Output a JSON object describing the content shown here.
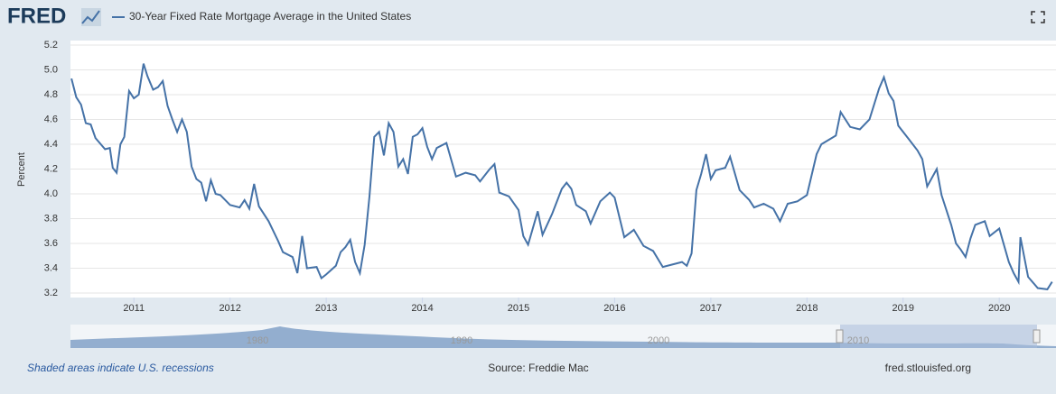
{
  "chart_data": {
    "type": "line",
    "logo": "FRED",
    "ylabel": "Percent",
    "series": [
      {
        "name": "30-Year Fixed Rate Mortgage Average in the United States",
        "color": "#4572a7",
        "values": [
          4.93,
          4.78,
          4.72,
          4.57,
          4.56,
          4.45,
          4.36,
          4.37,
          4.21,
          4.17,
          4.4,
          4.46,
          4.83,
          4.77,
          4.8,
          5.05,
          4.95,
          4.84,
          4.86,
          4.91,
          4.71,
          4.6,
          4.5,
          4.6,
          4.5,
          4.22,
          4.12,
          4.09,
          3.94,
          4.11,
          4.0,
          3.99,
          3.95,
          3.91,
          3.89,
          3.95,
          3.88,
          4.08,
          3.9,
          3.78,
          3.62,
          3.53,
          3.49,
          3.36,
          3.66,
          3.4,
          3.41,
          3.32,
          3.35,
          3.42,
          3.53,
          3.57,
          3.63,
          3.45,
          3.36,
          3.59,
          3.98,
          4.46,
          4.5,
          4.31,
          4.57,
          4.5,
          4.22,
          4.28,
          4.16,
          4.46,
          4.48,
          4.53,
          4.38,
          4.28,
          4.37,
          4.41,
          4.14,
          4.17,
          4.15,
          4.1,
          4.2,
          4.24,
          4.01,
          3.98,
          3.87,
          3.66,
          3.59,
          3.86,
          3.67,
          3.84,
          4.04,
          4.09,
          4.04,
          3.91,
          3.86,
          3.76,
          3.94,
          4.01,
          3.97,
          3.65,
          3.71,
          3.58,
          3.54,
          3.41,
          3.43,
          3.45,
          3.42,
          3.52,
          4.03,
          4.16,
          4.32,
          4.12,
          4.19,
          4.21,
          4.3,
          4.03,
          3.95,
          3.89,
          3.92,
          3.88,
          3.78,
          3.92,
          3.94,
          3.99,
          4.32,
          4.4,
          4.47,
          4.66,
          4.54,
          4.52,
          4.6,
          4.85,
          4.94,
          4.81,
          4.75,
          4.55,
          4.45,
          4.35,
          4.28,
          4.06,
          4.2,
          3.99,
          3.75,
          3.6,
          3.55,
          3.49,
          3.64,
          3.75,
          3.78,
          3.66,
          3.72,
          3.45,
          3.36,
          3.29,
          3.65,
          3.33,
          3.24,
          3.23,
          3.29
        ]
      }
    ],
    "x": [
      2010.35,
      2010.4,
      2010.45,
      2010.5,
      2010.55,
      2010.6,
      2010.7,
      2010.75,
      2010.78,
      2010.82,
      2010.86,
      2010.9,
      2010.95,
      2011.0,
      2011.05,
      2011.1,
      2011.14,
      2011.2,
      2011.25,
      2011.3,
      2011.35,
      2011.4,
      2011.45,
      2011.5,
      2011.55,
      2011.6,
      2011.65,
      2011.7,
      2011.75,
      2011.8,
      2011.85,
      2011.9,
      2011.95,
      2012.0,
      2012.1,
      2012.15,
      2012.2,
      2012.25,
      2012.3,
      2012.4,
      2012.5,
      2012.55,
      2012.65,
      2012.7,
      2012.75,
      2012.8,
      2012.9,
      2012.95,
      2013.0,
      2013.1,
      2013.15,
      2013.2,
      2013.25,
      2013.3,
      2013.35,
      2013.4,
      2013.45,
      2013.5,
      2013.55,
      2013.6,
      2013.65,
      2013.7,
      2013.75,
      2013.8,
      2013.85,
      2013.9,
      2013.95,
      2014.0,
      2014.05,
      2014.1,
      2014.15,
      2014.25,
      2014.35,
      2014.45,
      2014.55,
      2014.6,
      2014.7,
      2014.75,
      2014.8,
      2014.9,
      2015.0,
      2015.05,
      2015.1,
      2015.2,
      2015.25,
      2015.35,
      2015.45,
      2015.5,
      2015.55,
      2015.6,
      2015.7,
      2015.75,
      2015.85,
      2015.95,
      2016.0,
      2016.1,
      2016.2,
      2016.3,
      2016.4,
      2016.5,
      2016.6,
      2016.7,
      2016.75,
      2016.8,
      2016.85,
      2016.9,
      2016.95,
      2017.0,
      2017.05,
      2017.15,
      2017.2,
      2017.3,
      2017.4,
      2017.45,
      2017.55,
      2017.65,
      2017.72,
      2017.8,
      2017.9,
      2018.0,
      2018.1,
      2018.15,
      2018.3,
      2018.35,
      2018.45,
      2018.55,
      2018.65,
      2018.75,
      2018.8,
      2018.85,
      2018.9,
      2018.95,
      2019.05,
      2019.15,
      2019.2,
      2019.25,
      2019.35,
      2019.4,
      2019.5,
      2019.55,
      2019.6,
      2019.65,
      2019.7,
      2019.75,
      2019.85,
      2019.9,
      2020.0,
      2020.1,
      2020.15,
      2020.2,
      2020.22,
      2020.3,
      2020.4,
      2020.5,
      2020.55
    ],
    "xlim": [
      2010.34,
      2020.59
    ],
    "xticks": [
      2011,
      2012,
      2013,
      2014,
      2015,
      2016,
      2017,
      2018,
      2019,
      2020
    ],
    "ylim": [
      3.2,
      5.2
    ],
    "yticks": [
      3.2,
      3.4,
      3.6,
      3.8,
      {
        "value": 4,
        "label": "4.0"
      },
      4.2,
      4.4,
      4.6,
      4.8,
      {
        "value": 5,
        "label": "5.0"
      },
      5.2
    ],
    "grid": true,
    "navigator_ticks": [
      1980,
      1990,
      2000,
      2010
    ],
    "footer": {
      "left": "Shaded areas indicate U.S. recessions",
      "center": "Source: Freddie Mac",
      "right": "fred.stlouisfed.org"
    }
  }
}
